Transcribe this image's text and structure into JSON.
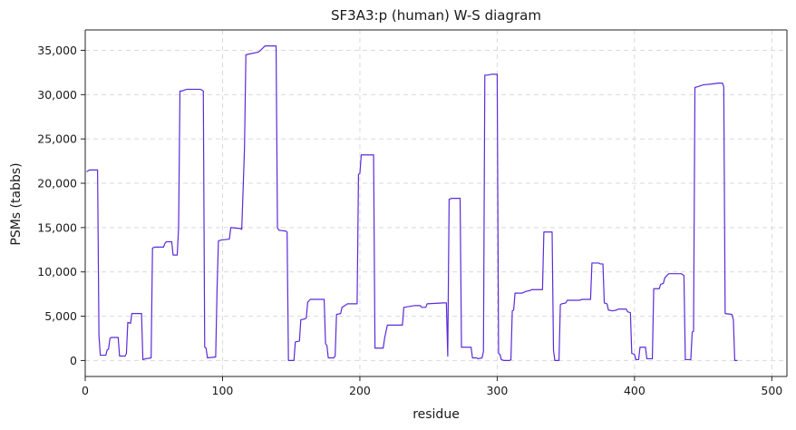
{
  "chart_data": {
    "type": "line",
    "title": "SF3A3:p (human) W-S diagram",
    "xlabel": "residue",
    "ylabel": "PSMs (tabbs)",
    "xlim": [
      0,
      511
    ],
    "ylim": [
      -1800,
      37300
    ],
    "x_ticks": [
      0,
      100,
      200,
      300,
      400,
      500
    ],
    "x_tick_labels": [
      "0",
      "100",
      "200",
      "300",
      "400",
      "500"
    ],
    "y_ticks": [
      0,
      5000,
      10000,
      15000,
      20000,
      25000,
      30000,
      35000
    ],
    "y_tick_labels": [
      "0",
      "5,000",
      "10,000",
      "15,000",
      "20,000",
      "25,000",
      "30,000",
      "35,000"
    ],
    "grid": true,
    "series": [
      {
        "color": "#5b2bd8",
        "points": [
          [
            1,
            21300
          ],
          [
            3,
            21500
          ],
          [
            9,
            21500
          ],
          [
            10,
            2800
          ],
          [
            11,
            600
          ],
          [
            15,
            600
          ],
          [
            16,
            1200
          ],
          [
            17,
            1300
          ],
          [
            18,
            2500
          ],
          [
            19,
            2600
          ],
          [
            24,
            2600
          ],
          [
            25,
            500
          ],
          [
            29,
            500
          ],
          [
            30,
            800
          ],
          [
            31,
            4300
          ],
          [
            33,
            4200
          ],
          [
            34,
            5300
          ],
          [
            41,
            5300
          ],
          [
            42,
            100
          ],
          [
            44,
            200
          ],
          [
            48,
            300
          ],
          [
            49,
            12700
          ],
          [
            51,
            12800
          ],
          [
            57,
            12800
          ],
          [
            58,
            13200
          ],
          [
            59,
            13400
          ],
          [
            63,
            13400
          ],
          [
            64,
            11900
          ],
          [
            67,
            11900
          ],
          [
            68,
            15000
          ],
          [
            69,
            30400
          ],
          [
            70,
            30400
          ],
          [
            72,
            30500
          ],
          [
            74,
            30600
          ],
          [
            84,
            30600
          ],
          [
            85,
            30500
          ],
          [
            86,
            30400
          ],
          [
            87,
            1500
          ],
          [
            88,
            1400
          ],
          [
            89,
            300
          ],
          [
            95,
            400
          ],
          [
            96,
            8000
          ],
          [
            97,
            13500
          ],
          [
            99,
            13600
          ],
          [
            105,
            13700
          ],
          [
            106,
            15000
          ],
          [
            113,
            14900
          ],
          [
            114,
            14800
          ],
          [
            116,
            24000
          ],
          [
            117,
            34500
          ],
          [
            120,
            34600
          ],
          [
            126,
            34800
          ],
          [
            127,
            34900
          ],
          [
            131,
            35500
          ],
          [
            139,
            35500
          ],
          [
            140,
            15000
          ],
          [
            141,
            14700
          ],
          [
            146,
            14600
          ],
          [
            147,
            14500
          ],
          [
            148,
            0
          ],
          [
            152,
            0
          ],
          [
            153,
            2100
          ],
          [
            156,
            2200
          ],
          [
            157,
            4600
          ],
          [
            160,
            4700
          ],
          [
            161,
            4800
          ],
          [
            162,
            6600
          ],
          [
            164,
            6900
          ],
          [
            174,
            6900
          ],
          [
            175,
            1900
          ],
          [
            176,
            1700
          ],
          [
            177,
            300
          ],
          [
            181,
            300
          ],
          [
            182,
            500
          ],
          [
            183,
            5200
          ],
          [
            186,
            5300
          ],
          [
            187,
            6000
          ],
          [
            189,
            6200
          ],
          [
            191,
            6400
          ],
          [
            198,
            6400
          ],
          [
            199,
            21000
          ],
          [
            200,
            21100
          ],
          [
            201,
            23200
          ],
          [
            210,
            23200
          ],
          [
            211,
            1400
          ],
          [
            217,
            1400
          ],
          [
            218,
            2500
          ],
          [
            220,
            4000
          ],
          [
            231,
            4000
          ],
          [
            232,
            6000
          ],
          [
            236,
            6100
          ],
          [
            240,
            6200
          ],
          [
            244,
            6200
          ],
          [
            245,
            6000
          ],
          [
            248,
            6000
          ],
          [
            249,
            6400
          ],
          [
            261,
            6500
          ],
          [
            263,
            6500
          ],
          [
            264,
            500
          ],
          [
            265,
            18200
          ],
          [
            267,
            18300
          ],
          [
            273,
            18300
          ],
          [
            274,
            1500
          ],
          [
            281,
            1500
          ],
          [
            282,
            300
          ],
          [
            285,
            300
          ],
          [
            286,
            200
          ],
          [
            289,
            300
          ],
          [
            290,
            1000
          ],
          [
            291,
            32200
          ],
          [
            293,
            32200
          ],
          [
            296,
            32300
          ],
          [
            300,
            32300
          ],
          [
            301,
            800
          ],
          [
            302,
            700
          ],
          [
            303,
            100
          ],
          [
            305,
            0
          ],
          [
            309,
            0
          ],
          [
            310,
            100
          ],
          [
            311,
            5600
          ],
          [
            312,
            5700
          ],
          [
            313,
            7600
          ],
          [
            318,
            7600
          ],
          [
            321,
            7800
          ],
          [
            324,
            7900
          ],
          [
            325,
            8000
          ],
          [
            333,
            8000
          ],
          [
            334,
            14500
          ],
          [
            340,
            14500
          ],
          [
            341,
            1200
          ],
          [
            342,
            0
          ],
          [
            345,
            0
          ],
          [
            346,
            6300
          ],
          [
            347,
            6400
          ],
          [
            350,
            6500
          ],
          [
            351,
            6800
          ],
          [
            360,
            6800
          ],
          [
            362,
            6900
          ],
          [
            368,
            6900
          ],
          [
            369,
            11000
          ],
          [
            374,
            11000
          ],
          [
            375,
            10900
          ],
          [
            377,
            10900
          ],
          [
            378,
            6500
          ],
          [
            380,
            6400
          ],
          [
            381,
            5700
          ],
          [
            384,
            5600
          ],
          [
            387,
            5700
          ],
          [
            388,
            5800
          ],
          [
            394,
            5800
          ],
          [
            395,
            5500
          ],
          [
            397,
            5400
          ],
          [
            398,
            800
          ],
          [
            400,
            700
          ],
          [
            401,
            100
          ],
          [
            403,
            100
          ],
          [
            404,
            1500
          ],
          [
            408,
            1500
          ],
          [
            409,
            200
          ],
          [
            413,
            200
          ],
          [
            414,
            8100
          ],
          [
            418,
            8100
          ],
          [
            419,
            8600
          ],
          [
            421,
            8700
          ],
          [
            422,
            9300
          ],
          [
            423,
            9500
          ],
          [
            425,
            9800
          ],
          [
            434,
            9800
          ],
          [
            435,
            9700
          ],
          [
            436,
            9600
          ],
          [
            437,
            100
          ],
          [
            441,
            100
          ],
          [
            442,
            3200
          ],
          [
            443,
            3300
          ],
          [
            444,
            30800
          ],
          [
            446,
            30900
          ],
          [
            448,
            31000
          ],
          [
            450,
            31100
          ],
          [
            456,
            31200
          ],
          [
            461,
            31300
          ],
          [
            464,
            31300
          ],
          [
            465,
            30900
          ],
          [
            466,
            5300
          ],
          [
            471,
            5200
          ],
          [
            472,
            4600
          ],
          [
            473,
            0
          ],
          [
            475,
            0
          ]
        ]
      }
    ]
  }
}
